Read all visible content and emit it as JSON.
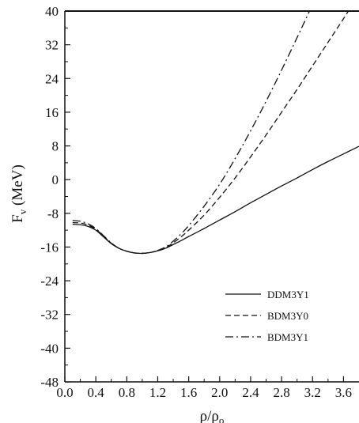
{
  "chart_data": {
    "type": "line",
    "title": "",
    "xlabel": "ρ/ρ",
    "xlabel_sub": "o",
    "ylabel": "F",
    "ylabel_sub": "v",
    "ylabel_unit": " (MeV)",
    "xlim": [
      0.0,
      3.8
    ],
    "ylim": [
      -48,
      40
    ],
    "x_ticks": [
      "0.0",
      "0.4",
      "0.8",
      "1.2",
      "1.6",
      "2.0",
      "2.4",
      "2.8",
      "3.2",
      "3.6"
    ],
    "y_ticks": [
      "40",
      "32",
      "24",
      "16",
      "8",
      "0",
      "-8",
      "-16",
      "-24",
      "-32",
      "-40",
      "-48"
    ],
    "grid": false,
    "legend_position": "bottom-right",
    "series": [
      {
        "name": "DDM3Y1",
        "style": "solid",
        "x": [
          0.1,
          0.2,
          0.3,
          0.4,
          0.5,
          0.6,
          0.7,
          0.8,
          0.9,
          1.0,
          1.1,
          1.2,
          1.3,
          1.4,
          1.5,
          1.6,
          1.8,
          2.0,
          2.2,
          2.4,
          2.6,
          2.8,
          3.0,
          3.2,
          3.4,
          3.6,
          3.8
        ],
        "y": [
          -10.6,
          -10.7,
          -11.1,
          -12.0,
          -13.6,
          -15.2,
          -16.3,
          -17.0,
          -17.4,
          -17.5,
          -17.3,
          -16.9,
          -16.3,
          -15.4,
          -14.5,
          -13.5,
          -11.6,
          -9.6,
          -7.6,
          -5.5,
          -3.5,
          -1.5,
          0.4,
          2.4,
          4.3,
          6.1,
          7.9
        ]
      },
      {
        "name": "BDM3Y0",
        "style": "dashed",
        "x": [
          0.1,
          0.2,
          0.3,
          0.4,
          0.5,
          0.6,
          0.7,
          0.8,
          0.9,
          1.0,
          1.1,
          1.2,
          1.3,
          1.4,
          1.5,
          1.6,
          1.8,
          2.0,
          2.2,
          2.4,
          2.6,
          2.8,
          3.0,
          3.2,
          3.4,
          3.6,
          3.8
        ],
        "y": [
          -10.2,
          -10.3,
          -10.8,
          -11.8,
          -13.4,
          -15.1,
          -16.3,
          -17.0,
          -17.4,
          -17.5,
          -17.3,
          -16.9,
          -16.2,
          -15.0,
          -13.6,
          -12.0,
          -8.4,
          -4.2,
          0.4,
          5.4,
          10.6,
          16.0,
          21.4,
          27.0,
          32.6,
          38.2,
          44.0
        ]
      },
      {
        "name": "BDM3Y1",
        "style": "dashdot",
        "x": [
          0.1,
          0.2,
          0.3,
          0.4,
          0.5,
          0.6,
          0.7,
          0.8,
          0.9,
          1.0,
          1.1,
          1.2,
          1.3,
          1.4,
          1.5,
          1.6,
          1.8,
          2.0,
          2.2,
          2.4,
          2.6,
          2.8,
          3.0,
          3.1,
          3.2
        ],
        "y": [
          -9.7,
          -9.9,
          -10.5,
          -11.6,
          -13.3,
          -15.0,
          -16.3,
          -17.0,
          -17.4,
          -17.5,
          -17.3,
          -16.8,
          -16.0,
          -14.6,
          -12.9,
          -10.9,
          -6.3,
          -1.1,
          5.0,
          11.6,
          18.6,
          26.0,
          33.7,
          37.6,
          41.6
        ]
      }
    ]
  }
}
